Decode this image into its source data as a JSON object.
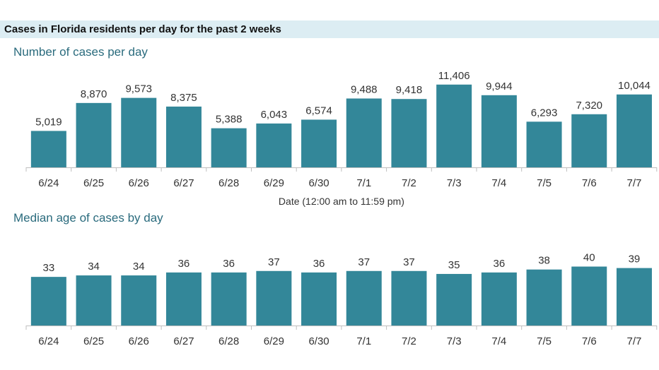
{
  "header": {
    "title": "Cases in Florida residents per day for the past 2 weeks"
  },
  "colors": {
    "bar": "#338799",
    "banner_bg": "#dcedf3",
    "subtitle": "#2a6b7d",
    "text": "#333333",
    "axis": "#bfbfbf"
  },
  "chart_data": [
    {
      "type": "bar",
      "title": "Number of cases per day",
      "xlabel": "Date (12:00 am to 11:59 pm)",
      "ylabel": "",
      "categories": [
        "6/24",
        "6/25",
        "6/26",
        "6/27",
        "6/28",
        "6/29",
        "6/30",
        "7/1",
        "7/2",
        "7/3",
        "7/4",
        "7/5",
        "7/6",
        "7/7"
      ],
      "values": [
        5019,
        8870,
        9573,
        8375,
        5388,
        6043,
        6574,
        9488,
        9418,
        11406,
        9944,
        6293,
        7320,
        10044
      ],
      "value_labels": [
        "5,019",
        "8,870",
        "9,573",
        "8,375",
        "5,388",
        "6,043",
        "6,574",
        "9,488",
        "9,418",
        "11,406",
        "9,944",
        "6,293",
        "7,320",
        "10,044"
      ],
      "ylim": [
        0,
        12650
      ],
      "grid": false,
      "legend": "none"
    },
    {
      "type": "bar",
      "title": "Median age of cases by day",
      "xlabel": "",
      "ylabel": "",
      "categories": [
        "6/24",
        "6/25",
        "6/26",
        "6/27",
        "6/28",
        "6/29",
        "6/30",
        "7/1",
        "7/2",
        "7/3",
        "7/4",
        "7/5",
        "7/6",
        "7/7"
      ],
      "values": [
        33,
        34,
        34,
        36,
        36,
        37,
        36,
        37,
        37,
        35,
        36,
        38,
        40,
        39
      ],
      "value_labels": [
        "33",
        "34",
        "34",
        "36",
        "36",
        "37",
        "36",
        "37",
        "37",
        "35",
        "36",
        "38",
        "40",
        "39"
      ],
      "ylim": [
        0,
        46
      ],
      "grid": false,
      "legend": "none"
    }
  ]
}
